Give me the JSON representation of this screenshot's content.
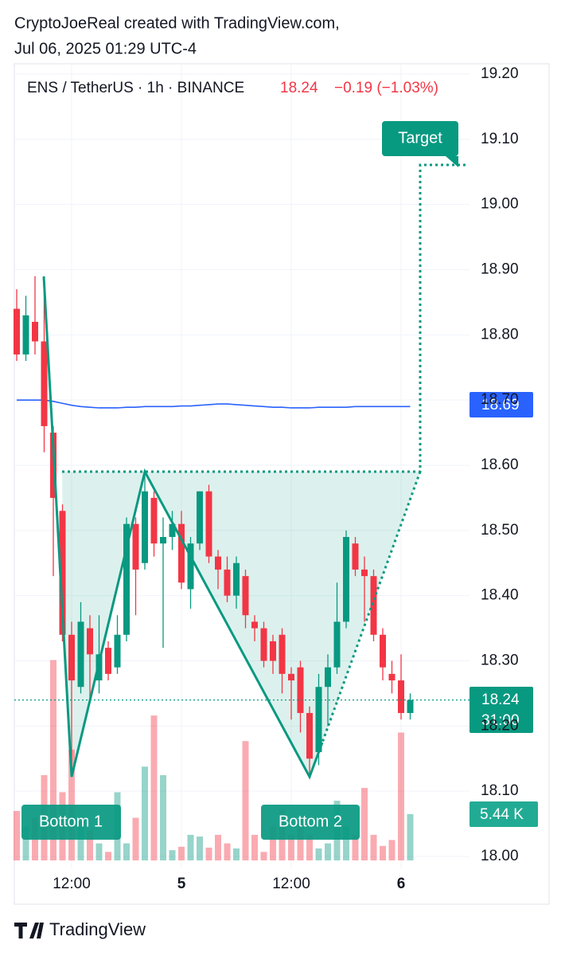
{
  "header": {
    "line1": "CryptoJoeReal created with TradingView.com,",
    "line2": "Jul 06, 2025 01:29 UTC-4"
  },
  "chart_data": {
    "type": "candlestick",
    "symbol": "ENS / TetherUS · 1h · BINANCE",
    "change": "−0.19 (−1.03%)",
    "countdown": "31:00",
    "up_color": "#089981",
    "down_color": "#f23645",
    "open": [
      18.84,
      18.77,
      18.82,
      18.79,
      18.65,
      18.53,
      18.34,
      18.26,
      18.35,
      18.27,
      18.32,
      18.29,
      18.34,
      18.51,
      18.45,
      18.55,
      18.48,
      18.49,
      18.51,
      18.41,
      18.48,
      18.56,
      18.46,
      18.44,
      18.4,
      18.43,
      18.36,
      18.35,
      18.33,
      18.34,
      18.28,
      18.29,
      18.22,
      18.16,
      18.26,
      18.29,
      18.36,
      18.48,
      18.44,
      18.43,
      18.34,
      18.28,
      18.27,
      18.22
    ],
    "high": [
      18.87,
      18.86,
      18.89,
      18.89,
      18.66,
      18.54,
      18.36,
      18.39,
      18.37,
      18.37,
      18.33,
      18.37,
      18.52,
      18.52,
      18.59,
      18.56,
      18.52,
      18.53,
      18.53,
      18.49,
      18.56,
      18.57,
      18.47,
      18.46,
      18.46,
      18.44,
      18.37,
      18.36,
      18.34,
      18.35,
      18.29,
      18.3,
      18.23,
      18.28,
      18.31,
      18.42,
      18.5,
      18.49,
      18.46,
      18.44,
      18.35,
      18.3,
      18.31,
      18.25
    ],
    "low": [
      18.76,
      18.76,
      18.77,
      18.62,
      18.43,
      18.33,
      18.13,
      18.25,
      18.24,
      18.25,
      18.27,
      18.28,
      18.33,
      18.37,
      18.44,
      18.46,
      18.32,
      18.47,
      18.41,
      18.38,
      18.47,
      18.45,
      18.41,
      18.39,
      18.38,
      18.35,
      18.33,
      18.29,
      18.28,
      18.25,
      18.21,
      18.19,
      18.12,
      18.14,
      18.2,
      18.28,
      18.35,
      18.43,
      18.36,
      18.33,
      18.27,
      18.25,
      18.21,
      18.21
    ],
    "close": [
      18.77,
      18.83,
      18.79,
      18.66,
      18.55,
      18.34,
      18.27,
      18.36,
      18.31,
      18.31,
      18.28,
      18.34,
      18.51,
      18.44,
      18.56,
      18.48,
      18.49,
      18.51,
      18.42,
      18.48,
      18.56,
      18.46,
      18.44,
      18.4,
      18.45,
      18.37,
      18.35,
      18.3,
      18.3,
      18.28,
      18.27,
      18.22,
      18.15,
      18.26,
      18.29,
      18.36,
      18.49,
      18.44,
      18.43,
      18.34,
      18.29,
      18.27,
      18.22,
      18.24
    ],
    "volume": [
      5.8,
      4,
      5,
      10,
      23.5,
      8,
      13,
      4.5,
      3.5,
      2,
      1,
      8,
      2,
      5,
      11,
      17,
      10,
      1.2,
      1.6,
      3,
      2.8,
      1.5,
      3,
      2,
      1.4,
      14,
      3,
      1,
      4,
      6,
      3,
      5,
      3,
      1.4,
      2,
      7,
      4,
      3,
      8.5,
      3,
      1.7,
      2.4,
      15,
      5.44
    ],
    "volume_last_label": "5.44 K",
    "ma": {
      "color": "#2962ff",
      "values": [
        18.7,
        18.7,
        18.7,
        18.7,
        18.698,
        18.695,
        18.692,
        18.69,
        18.689,
        18.688,
        18.688,
        18.688,
        18.689,
        18.689,
        18.69,
        18.69,
        18.69,
        18.69,
        18.691,
        18.691,
        18.692,
        18.693,
        18.694,
        18.694,
        18.693,
        18.692,
        18.691,
        18.69,
        18.689,
        18.689,
        18.688,
        18.688,
        18.688,
        18.689,
        18.689,
        18.689,
        18.689,
        18.69,
        18.69,
        18.69,
        18.69,
        18.69,
        18.69,
        18.69
      ]
    },
    "ylim": [
      18.0,
      19.2
    ],
    "yticks": [
      {
        "value": 18.0,
        "label": "18.00"
      },
      {
        "value": 18.1,
        "label": "18.10"
      },
      {
        "value": 18.2,
        "label": "18.20"
      },
      {
        "value": 18.3,
        "label": "18.30"
      },
      {
        "value": 18.4,
        "label": "18.40"
      },
      {
        "value": 18.5,
        "label": "18.50"
      },
      {
        "value": 18.6,
        "label": "18.60"
      },
      {
        "value": 18.7,
        "label": "18.70"
      },
      {
        "value": 18.8,
        "label": "18.80"
      },
      {
        "value": 18.9,
        "label": "18.90"
      },
      {
        "value": 19.0,
        "label": "19.00"
      },
      {
        "value": 19.1,
        "label": "19.10"
      },
      {
        "value": 19.2,
        "label": "19.20"
      }
    ],
    "xticks": [
      {
        "value": 6,
        "label": "12:00"
      },
      {
        "value": 18,
        "label": "5"
      },
      {
        "value": 30,
        "label": "12:00"
      },
      {
        "value": 42,
        "label": "6"
      }
    ],
    "grid": true,
    "annotations": [
      "Target",
      "Bottom 1",
      "Bottom 2"
    ]
  },
  "footer": "TradingView"
}
